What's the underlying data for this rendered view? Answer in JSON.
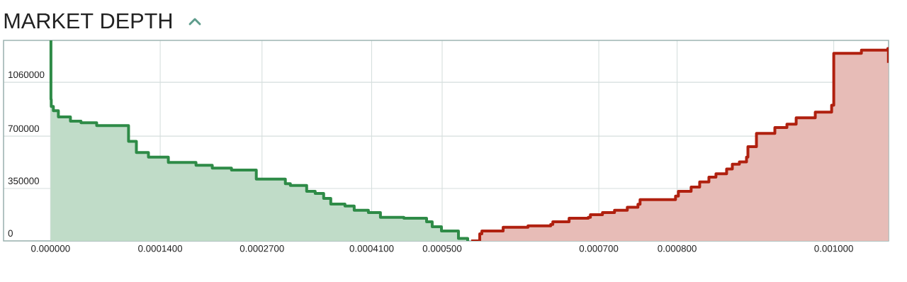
{
  "chart_data": {
    "type": "step",
    "title": "MARKET DEPTH",
    "xlim": [
      -6e-05,
      0.00107
    ],
    "ylim": [
      0,
      1340000
    ],
    "xticks": [
      {
        "value": 0,
        "label": "0.000000"
      },
      {
        "value": 0.00014,
        "label": "0.0001400"
      },
      {
        "value": 0.00027,
        "label": "0.0002700"
      },
      {
        "value": 0.00041,
        "label": "0.0004100"
      },
      {
        "value": 0.0005,
        "label": "0.000500"
      },
      {
        "value": 0.0007,
        "label": "0.000700"
      },
      {
        "value": 0.0008,
        "label": "0.000800"
      },
      {
        "value": 0.001,
        "label": "0.001000"
      }
    ],
    "yticks": [
      0,
      350000,
      700000,
      1060000
    ],
    "grid": true,
    "marker": "none",
    "line_style": "solid",
    "series": [
      {
        "color": "#2e8b47",
        "x": [
          0,
          5e-07,
          9e-07,
          3.6e-06,
          1e-05,
          2.54e-05,
          3.89e-05,
          5.89e-05,
          9.96e-05,
          0.0001096,
          0.000125,
          0.0001504,
          0.0001857,
          0.0002065,
          0.000231,
          0.0002627,
          0.0002998,
          0.0003062,
          0.000327,
          0.0003379,
          0.0003487,
          0.0003578,
          0.0003759,
          0.0003877,
          0.0004058,
          0.0004212,
          0.0004511,
          0.0004801,
          0.0004873,
          0.0004991,
          0.0005208,
          0.0005326
        ],
        "values": [
          1340000,
          946000,
          898000,
          870000,
          828000,
          800000,
          790000,
          770000,
          665000,
          591000,
          560000,
          524000,
          505000,
          486000,
          473000,
          413000,
          382000,
          370000,
          331000,
          317000,
          284000,
          246000,
          233000,
          205000,
          189000,
          157000,
          151000,
          128000,
          95000,
          66000,
          16000,
          0
        ]
      },
      {
        "color": "#b0200f",
        "x": [
          0.0005371,
          0.000548,
          0.0005507,
          0.0005779,
          0.0006096,
          0.0006386,
          0.0006413,
          0.0006621,
          0.0006866,
          0.0006893,
          0.0007047,
          0.0007201,
          0.0007364,
          0.00075,
          0.0007527,
          0.000798,
          0.0008016,
          0.0008179,
          0.0008288,
          0.0008406,
          0.0008496,
          0.0008632,
          0.0008705,
          0.0008795,
          0.0008886,
          0.0008904,
          0.0009013,
          0.0009248,
          0.0009402,
          0.000952,
          0.0009764,
          0.0009973,
          0.001,
          0.0010353,
          0.001069,
          0.0010698
        ],
        "values": [
          0,
          47000,
          66000,
          91000,
          100000,
          110000,
          128000,
          151000,
          157000,
          175000,
          189000,
          205000,
          225000,
          245000,
          276000,
          299000,
          331000,
          360000,
          394000,
          426000,
          449000,
          481000,
          512000,
          528000,
          560000,
          630000,
          718000,
          757000,
          780000,
          823000,
          860000,
          907000,
          1253000,
          1275000,
          1285000,
          1190000
        ]
      }
    ]
  }
}
